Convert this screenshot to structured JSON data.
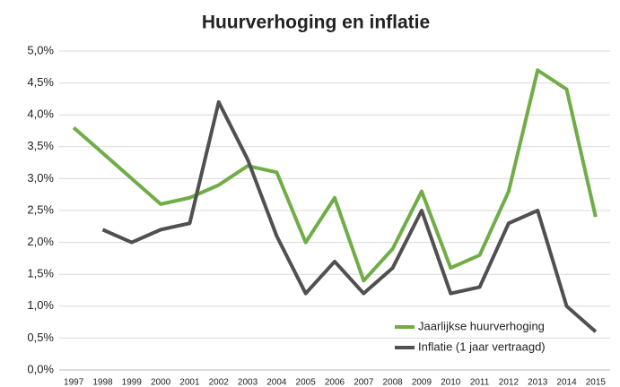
{
  "chart_data": {
    "type": "line",
    "title": "Huurverhoging en inflatie",
    "categories": [
      "1997",
      "1998",
      "1999",
      "2000",
      "2001",
      "2002",
      "2003",
      "2004",
      "2005",
      "2006",
      "2007",
      "2008",
      "2009",
      "2010",
      "2011",
      "2012",
      "2013",
      "2014",
      "2015"
    ],
    "series": [
      {
        "name": "Jaarlijkse huurverhoging",
        "color": "#70ad47",
        "values": [
          3.8,
          3.4,
          3.0,
          2.6,
          2.7,
          2.9,
          3.2,
          3.1,
          2.0,
          2.7,
          1.4,
          1.9,
          2.8,
          1.6,
          1.8,
          2.8,
          4.7,
          4.4,
          2.4
        ]
      },
      {
        "name": "Inflatie (1 jaar vertraagd)",
        "color": "#505050",
        "values": [
          null,
          2.2,
          2.0,
          2.2,
          2.3,
          4.2,
          3.3,
          2.1,
          1.2,
          1.7,
          1.2,
          1.6,
          2.5,
          1.2,
          1.3,
          2.3,
          2.5,
          1.0,
          0.6
        ]
      }
    ],
    "ylim": [
      0,
      5
    ],
    "yticks": [
      {
        "value": 0,
        "label": "0,0%"
      },
      {
        "value": 0.5,
        "label": "0,5%"
      },
      {
        "value": 1,
        "label": "1,0%"
      },
      {
        "value": 1.5,
        "label": "1,5%"
      },
      {
        "value": 2,
        "label": "2,0%"
      },
      {
        "value": 2.5,
        "label": "2,5%"
      },
      {
        "value": 3,
        "label": "3,0%"
      },
      {
        "value": 3.5,
        "label": "3,5%"
      },
      {
        "value": 4,
        "label": "4,0%"
      },
      {
        "value": 4.5,
        "label": "4,5%"
      },
      {
        "value": 5,
        "label": "5,0%"
      }
    ],
    "grid": true,
    "legend": "lower right"
  }
}
